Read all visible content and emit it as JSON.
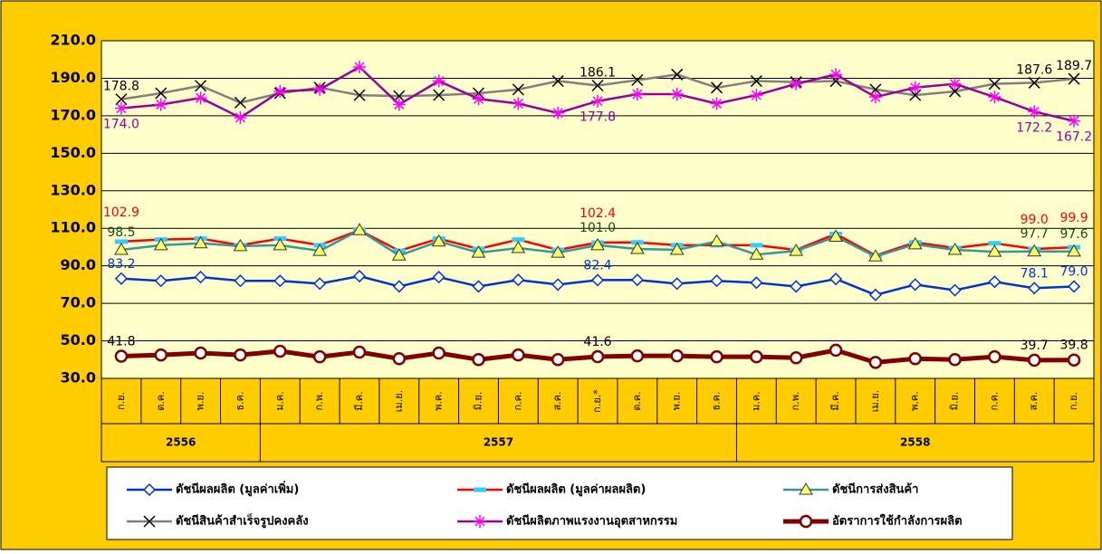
{
  "chart_data": {
    "type": "line",
    "groups": [
      {
        "name": "2556",
        "categories": [
          "ก.ย.",
          "ต.ค.",
          "พ.ย.",
          "ธ.ค."
        ]
      },
      {
        "name": "2557",
        "categories": [
          "ม.ค.",
          "ก.พ.",
          "มี.ค.",
          "เม.ย.",
          "พ.ค.",
          "มิ.ย.",
          "ก.ค.",
          "ส.ค.",
          "ก.ย.*",
          "ต.ค.",
          "พ.ย.",
          "ธ.ค."
        ]
      },
      {
        "name": "2558",
        "categories": [
          "ม.ค.",
          "ก.พ.",
          "มี.ค.",
          "เม.ย.",
          "พ.ค.",
          "มิ.ย.",
          "ก.ค.",
          "ส.ค.",
          "ก.ย."
        ]
      }
    ],
    "ylim": [
      30,
      210
    ],
    "yticks": [
      {
        "value": 30,
        "label": "30.0"
      },
      {
        "value": 50,
        "label": "50.0"
      },
      {
        "value": 70,
        "label": "70.0"
      },
      {
        "value": 90,
        "label": "90.0"
      },
      {
        "value": 110,
        "label": "110.0"
      },
      {
        "value": 130,
        "label": "130.0"
      },
      {
        "value": 150,
        "label": "150.0"
      },
      {
        "value": 170,
        "label": "170.0"
      },
      {
        "value": 190,
        "label": "190.0"
      },
      {
        "value": 210,
        "label": "210.0"
      }
    ],
    "grid": true,
    "series": [
      {
        "name": "ดัชนีผลผลิต (มูลค่าเพิ่ม)",
        "color": "#0033cc",
        "marker": "diamond",
        "marker_color": "#0033cc",
        "label_color": "#0033cc",
        "values": [
          83.2,
          82,
          84,
          82,
          82,
          80.5,
          84.5,
          79,
          84,
          79,
          82.5,
          80,
          82.4,
          82.5,
          80.5,
          82,
          81,
          79,
          83,
          74.5,
          80,
          77,
          81.5,
          78.1,
          79.0
        ],
        "value_labels": [
          "83.2",
          null,
          null,
          null,
          null,
          null,
          null,
          null,
          null,
          null,
          null,
          null,
          "82.4",
          null,
          null,
          null,
          null,
          null,
          null,
          null,
          null,
          null,
          null,
          "78.1",
          "79.0"
        ]
      },
      {
        "name": "ดัชนีผลผลิต (มูลค่าผลผลิต)",
        "color": "#ff0000",
        "marker": "dash",
        "marker_color": "#33ccff",
        "label_color": "#ff0000",
        "values": [
          102.9,
          104,
          104.5,
          101,
          104.5,
          101,
          109,
          98,
          104.5,
          99,
          104,
          98.5,
          102.4,
          102.5,
          101,
          101,
          101,
          98.5,
          107,
          95.5,
          102.5,
          99.5,
          102,
          99.0,
          99.9
        ],
        "value_labels": [
          "102.9",
          null,
          null,
          null,
          null,
          null,
          null,
          null,
          null,
          null,
          null,
          null,
          "102.4",
          null,
          null,
          null,
          null,
          null,
          null,
          null,
          null,
          null,
          null,
          "99.0",
          "99.9"
        ]
      },
      {
        "name": "ดัชนีการส่งสินค้า",
        "color": "#339999",
        "marker": "triangle",
        "marker_color": "#ffff66",
        "label_color": "#1a4d1a",
        "values": [
          98.5,
          101,
          102,
          100.5,
          101,
          98,
          109,
          95.5,
          103,
          97,
          99.5,
          97,
          101.0,
          99,
          98.5,
          103,
          96,
          98,
          105.5,
          95,
          101.5,
          98.5,
          97.5,
          97.7,
          97.6
        ],
        "value_labels": [
          "98.5",
          null,
          null,
          null,
          null,
          null,
          null,
          null,
          null,
          null,
          null,
          null,
          "101.0",
          null,
          null,
          null,
          null,
          null,
          null,
          null,
          null,
          null,
          null,
          "97.7",
          "97.6"
        ]
      },
      {
        "name": "ดัชนีสินค้าสำเร็จรูปคงคลัง",
        "color": "#808080",
        "marker": "x",
        "marker_color": "#000000",
        "label_color": "#000000",
        "values": [
          178.8,
          182,
          186,
          177,
          182,
          185,
          181,
          180.5,
          181,
          182,
          184,
          188.5,
          186.1,
          189,
          192,
          185,
          188.5,
          188,
          188.5,
          184,
          181,
          183,
          187,
          187.6,
          189.7
        ],
        "value_labels": [
          "178.8",
          null,
          null,
          null,
          null,
          null,
          null,
          null,
          null,
          null,
          null,
          null,
          "186.1",
          null,
          null,
          null,
          null,
          null,
          null,
          null,
          null,
          null,
          null,
          "187.6",
          "189.7"
        ]
      },
      {
        "name": "ดัชนีผลิตภาพแรงงานอุตสาหกรรม",
        "color": "#990099",
        "marker": "star",
        "marker_color": "#ff00ff",
        "label_color": "#990099",
        "values": [
          174.0,
          176,
          179.5,
          169,
          183,
          184,
          196,
          176,
          188.5,
          179,
          176.5,
          171.5,
          177.8,
          181.5,
          181.5,
          176.5,
          181,
          187,
          192,
          180,
          185,
          187,
          180,
          172.2,
          167.2
        ],
        "value_labels": [
          "174.0",
          null,
          null,
          null,
          null,
          null,
          null,
          null,
          null,
          null,
          null,
          null,
          "177.8",
          null,
          null,
          null,
          null,
          null,
          null,
          null,
          null,
          null,
          null,
          "172.2",
          "167.2"
        ]
      },
      {
        "name": "อัตราการใช้กำลังการผลิต",
        "color": "#800000",
        "marker": "circle",
        "marker_color": "#800000",
        "label_color": "#000000",
        "values": [
          41.8,
          42.5,
          43.5,
          42.5,
          44.5,
          41.5,
          44,
          40.5,
          43.5,
          40,
          42.5,
          40,
          41.6,
          42,
          42,
          41.5,
          41.5,
          41,
          45,
          38.5,
          40.5,
          40,
          41.5,
          39.7,
          39.8
        ],
        "value_labels": [
          "41.8",
          null,
          null,
          null,
          null,
          null,
          null,
          null,
          null,
          null,
          null,
          null,
          "41.6",
          null,
          null,
          null,
          null,
          null,
          null,
          null,
          null,
          null,
          null,
          "39.7",
          "39.8"
        ]
      }
    ]
  }
}
